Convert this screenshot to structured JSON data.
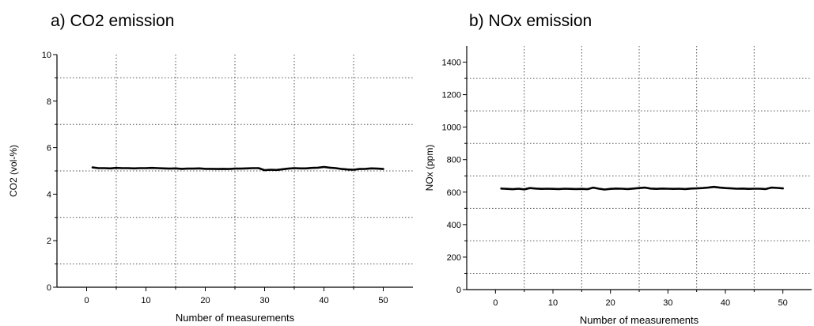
{
  "panels": [
    {
      "title": "a) CO2 emission"
    },
    {
      "title": "b) NOx emission"
    }
  ],
  "chart_data": [
    {
      "type": "line",
      "title": "a) CO2 emission",
      "xlabel": "Number of measurements",
      "ylabel": "CO2 (vol-%)",
      "xlim": [
        -5,
        55
      ],
      "ylim": [
        0,
        10
      ],
      "xticks": [
        "0",
        "10",
        "20",
        "30",
        "40",
        "50"
      ],
      "yticks": [
        "0",
        "2",
        "4",
        "6",
        "8",
        "10"
      ],
      "grid": "dotted",
      "series": [
        {
          "color": "#000000",
          "x": [
            1,
            2,
            3,
            4,
            5,
            6,
            7,
            8,
            9,
            10,
            11,
            12,
            13,
            14,
            15,
            16,
            17,
            18,
            19,
            20,
            21,
            22,
            23,
            24,
            25,
            26,
            27,
            28,
            29,
            30,
            31,
            32,
            33,
            34,
            35,
            36,
            37,
            38,
            39,
            40,
            41,
            42,
            43,
            44,
            45,
            46,
            47,
            48,
            49,
            50
          ],
          "y": [
            5.15,
            5.12,
            5.12,
            5.11,
            5.13,
            5.12,
            5.12,
            5.11,
            5.12,
            5.12,
            5.13,
            5.12,
            5.11,
            5.1,
            5.11,
            5.09,
            5.1,
            5.1,
            5.11,
            5.09,
            5.09,
            5.08,
            5.09,
            5.08,
            5.1,
            5.1,
            5.11,
            5.12,
            5.12,
            5.03,
            5.05,
            5.04,
            5.07,
            5.1,
            5.12,
            5.11,
            5.11,
            5.13,
            5.14,
            5.17,
            5.14,
            5.12,
            5.08,
            5.06,
            5.05,
            5.08,
            5.09,
            5.11,
            5.1,
            5.08
          ]
        }
      ]
    },
    {
      "type": "line",
      "title": "b) NOx emission",
      "xlabel": "Number of measurements",
      "ylabel": "NOx (ppm)",
      "xlim": [
        -5,
        55
      ],
      "ylim": [
        0,
        1500
      ],
      "xticks": [
        "0",
        "10",
        "20",
        "30",
        "40",
        "50"
      ],
      "yticks": [
        "0",
        "200",
        "400",
        "600",
        "800",
        "1000",
        "1200",
        "1400"
      ],
      "grid": "dotted",
      "series": [
        {
          "color": "#000000",
          "x": [
            1,
            2,
            3,
            4,
            5,
            6,
            7,
            8,
            9,
            10,
            11,
            12,
            13,
            14,
            15,
            16,
            17,
            18,
            19,
            20,
            21,
            22,
            23,
            24,
            25,
            26,
            27,
            28,
            29,
            30,
            31,
            32,
            33,
            34,
            35,
            36,
            37,
            38,
            39,
            40,
            41,
            42,
            43,
            44,
            45,
            46,
            47,
            48,
            49,
            50
          ],
          "y": [
            622,
            620,
            618,
            621,
            617,
            625,
            622,
            620,
            621,
            620,
            619,
            621,
            620,
            619,
            620,
            618,
            628,
            621,
            616,
            620,
            622,
            621,
            619,
            622,
            625,
            628,
            622,
            620,
            622,
            621,
            620,
            621,
            619,
            622,
            623,
            625,
            628,
            632,
            628,
            625,
            623,
            621,
            622,
            620,
            621,
            621,
            619,
            628,
            626,
            623
          ]
        }
      ]
    }
  ]
}
